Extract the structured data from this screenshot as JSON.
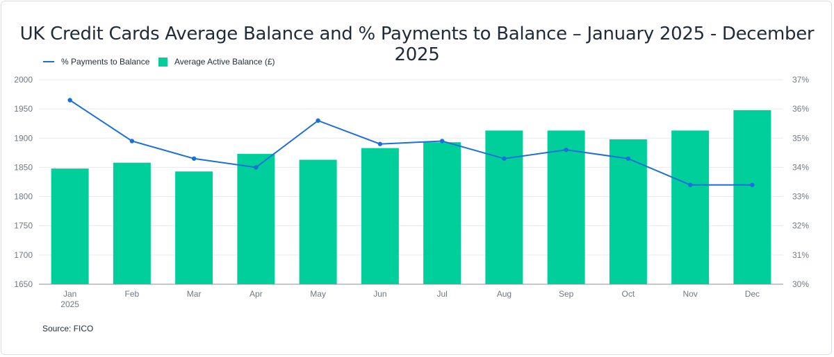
{
  "title": "UK Credit Cards Average Balance and % Payments to Balance – January 2025 - December 2025",
  "source": "Source: FICO",
  "colors": {
    "bar": "#00cf9c",
    "line": "#1a6fd8",
    "grid": "#e6e9ec",
    "axis": "#8a9096"
  },
  "chart_data": {
    "type": "bar",
    "categories": [
      "Jan",
      "Feb",
      "Mar",
      "Apr",
      "May",
      "Jun",
      "Jul",
      "Aug",
      "Sep",
      "Oct",
      "Nov",
      "Dec"
    ],
    "category_sublabels": [
      "2025",
      "",
      "",
      "",
      "",
      "",
      "",
      "",
      "",
      "",
      "",
      ""
    ],
    "series": [
      {
        "name": "Average Active Balance (£)",
        "type": "bar",
        "axis": "left",
        "values": [
          1848,
          1858,
          1843,
          1873,
          1863,
          1883,
          1893,
          1913,
          1913,
          1898,
          1913,
          1948
        ]
      },
      {
        "name": "% Payments to Balance",
        "type": "line",
        "axis": "right",
        "values": [
          36.3,
          34.9,
          34.3,
          34.0,
          35.6,
          34.8,
          34.9,
          34.3,
          34.6,
          34.3,
          33.4,
          33.4
        ]
      }
    ],
    "left_axis": {
      "ylim": [
        1650,
        2000
      ],
      "ticks": [
        "1650",
        "1700",
        "1750",
        "1800",
        "1850",
        "1900",
        "1950",
        "2000"
      ]
    },
    "right_axis": {
      "ylim": [
        30,
        37
      ],
      "ticks": [
        "30%",
        "31%",
        "32%",
        "33%",
        "34%",
        "35%",
        "36%",
        "37%"
      ]
    },
    "legend_position": "top-left",
    "grid": true
  }
}
